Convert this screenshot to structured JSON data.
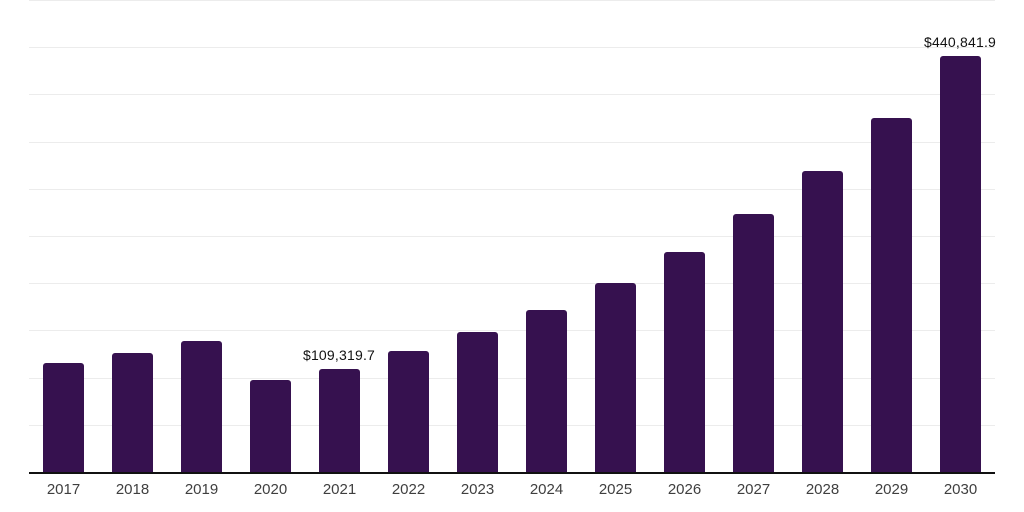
{
  "chart": {
    "background_color": "#ffffff",
    "bar_color": "#36114f",
    "gridline_color": "#ececec",
    "axis_color": "#111111",
    "data_label_color": "#111111",
    "tick_label_color": "#3f3f3f"
  },
  "chart_data": {
    "type": "bar",
    "title": "",
    "xlabel": "",
    "ylabel": "",
    "categories": [
      "2017",
      "2018",
      "2019",
      "2020",
      "2021",
      "2022",
      "2023",
      "2024",
      "2025",
      "2026",
      "2027",
      "2028",
      "2029",
      "2030"
    ],
    "values": [
      115500,
      126000,
      138300,
      97000,
      109319.7,
      128500,
      147900,
      171900,
      200200,
      232600,
      273300,
      319200,
      375000,
      440841.9
    ],
    "ylim": [
      0,
      500000
    ],
    "gridline_step": 50000,
    "grid": true,
    "legend": false,
    "y_axis_labels_visible": false,
    "data_labels": [
      {
        "category": "2021",
        "text": "$109,319.7"
      },
      {
        "category": "2030",
        "text": "$440,841.9"
      }
    ]
  }
}
